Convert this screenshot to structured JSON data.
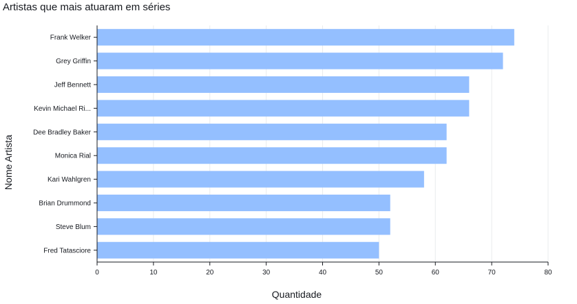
{
  "chart_data": {
    "type": "bar",
    "orientation": "horizontal",
    "title": "Artistas que mais atuaram em séries",
    "xlabel": "Quantidade",
    "ylabel": "Nome Artista",
    "categories": [
      "Frank Welker",
      "Grey Griffin",
      "Jeff Bennett",
      "Kevin Michael Ri...",
      "Dee Bradley Baker",
      "Monica Rial",
      "Kari Wahlgren",
      "Brian Drummond",
      "Steve Blum",
      "Fred Tatasciore"
    ],
    "values": [
      74,
      72,
      66,
      66,
      62,
      62,
      58,
      52,
      52,
      50
    ],
    "xlim": [
      0,
      80
    ],
    "xticks": [
      0,
      10,
      20,
      30,
      40,
      50,
      60,
      70,
      80
    ],
    "grid": true,
    "bar_color": "#94bfff"
  }
}
